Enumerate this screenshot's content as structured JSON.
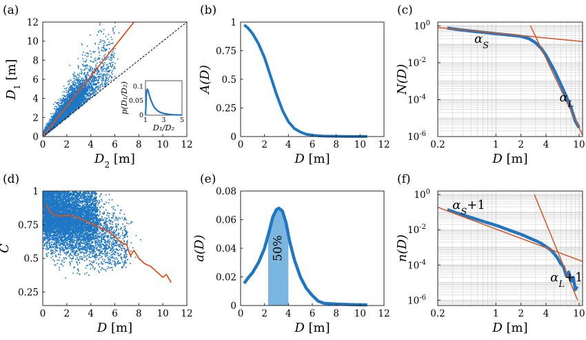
{
  "colors": {
    "blue": "#1f77c4",
    "orange": "#d9531e",
    "shade": "#7ab6e0",
    "grid": "#cfcfcf"
  },
  "chart_data": [
    {
      "id": "a",
      "type": "scatter",
      "panel_label": "(a)",
      "xlabel_sym": "D",
      "xlabel_sub": "2",
      "xlabel_unit": "[m]",
      "ylabel_sym": "D",
      "ylabel_sub": "1",
      "ylabel_unit": "[m]",
      "xlim": [
        0,
        12
      ],
      "ylim": [
        0,
        12
      ],
      "xticks": [
        0,
        2,
        4,
        6,
        8,
        10,
        12
      ],
      "yticks": [
        0,
        2,
        4,
        6,
        8,
        10,
        12
      ],
      "fit_line": {
        "x": [
          0,
          7.6
        ],
        "y": [
          0,
          12
        ]
      },
      "identity_line": {
        "x": [
          0,
          12
        ],
        "y": [
          0,
          12
        ],
        "style": "dashed"
      },
      "inset": {
        "type": "line",
        "xlabel": "D₁/D₂",
        "ylabel": "p(D₁/D₂)",
        "xlim": [
          1,
          5
        ],
        "ylim": [
          0,
          0.12
        ],
        "xticks": [
          1,
          3,
          5
        ],
        "yticks": [
          0,
          0.05,
          0.1
        ],
        "x": [
          1.0,
          1.05,
          1.1,
          1.15,
          1.2,
          1.3,
          1.4,
          1.6,
          1.8,
          2.0,
          2.3,
          2.6,
          3.0,
          3.5,
          4.0,
          4.5,
          5.0
        ],
        "y": [
          0.0,
          0.03,
          0.07,
          0.088,
          0.09,
          0.085,
          0.072,
          0.052,
          0.037,
          0.026,
          0.016,
          0.01,
          0.006,
          0.003,
          0.0015,
          0.0008,
          0.0004
        ]
      }
    },
    {
      "id": "b",
      "type": "line",
      "panel_label": "(b)",
      "xlabel_sym": "D",
      "xlabel_unit": "[m]",
      "ylabel": "A(D)",
      "xlim": [
        0,
        12
      ],
      "ylim": [
        0,
        1
      ],
      "xticks": [
        0,
        2,
        4,
        6,
        8,
        10,
        12
      ],
      "yticks": [
        0,
        0.25,
        0.5,
        0.75,
        1
      ],
      "ytick_labels": [
        "0",
        "0.25",
        "0.5",
        "0.75",
        "1"
      ],
      "x": [
        0.3,
        0.6,
        1.0,
        1.5,
        2.0,
        2.5,
        3.0,
        3.5,
        4.0,
        4.5,
        5.0,
        5.5,
        6.0,
        6.5,
        7.0,
        8.0,
        9.0,
        10.0,
        10.6
      ],
      "y": [
        0.975,
        0.95,
        0.9,
        0.81,
        0.69,
        0.53,
        0.37,
        0.23,
        0.13,
        0.07,
        0.04,
        0.02,
        0.012,
        0.007,
        0.004,
        0.002,
        0.001,
        0.001,
        0.001
      ]
    },
    {
      "id": "c",
      "type": "line",
      "panel_label": "(c)",
      "scale": "loglog",
      "xlabel_sym": "D",
      "xlabel_unit": "[m]",
      "ylabel": "N(D)",
      "xlim": [
        0.2,
        11
      ],
      "ylim_exp": [
        -6,
        0.2
      ],
      "xticks": [
        0.2,
        1,
        2,
        4,
        10
      ],
      "ytick_exps": [
        -6,
        -4,
        -2,
        0
      ],
      "grid": true,
      "x": [
        0.26,
        0.35,
        0.5,
        0.7,
        1.0,
        1.5,
        2.0,
        2.5,
        3.0,
        3.5,
        4.0,
        5.0,
        6.0,
        7.0,
        8.0,
        9.0,
        10.0
      ],
      "y": [
        0.75,
        0.62,
        0.52,
        0.44,
        0.37,
        0.31,
        0.27,
        0.2,
        0.12,
        0.06,
        0.025,
        0.004,
        0.0007,
        0.00015,
        3.5e-05,
        7e-06,
        3e-06
      ],
      "fit_small": {
        "x": [
          0.2,
          11
        ],
        "y": [
          0.81,
          0.14
        ]
      },
      "fit_large": {
        "x": [
          2.6,
          11
        ],
        "y": [
          1.0,
          1.2e-06
        ]
      },
      "annotations": [
        {
          "sym": "α",
          "sub": "S",
          "at": [
            0.55,
            0.12
          ]
        },
        {
          "sym": "α",
          "sub": "L",
          "at": [
            5.8,
            8e-05
          ]
        }
      ]
    },
    {
      "id": "d",
      "type": "scatter",
      "panel_label": "(d)",
      "xlabel_sym": "D",
      "xlabel_unit": "[m]",
      "ylabel": "C",
      "xlim": [
        0,
        12
      ],
      "ylim": [
        0.15,
        1
      ],
      "xticks": [
        0,
        2,
        4,
        6,
        8,
        10,
        12
      ],
      "yticks": [
        0.25,
        0.5,
        0.75,
        1
      ],
      "ytick_labels": [
        "0.25",
        "0.5",
        "0.75",
        "1"
      ],
      "mean_line": {
        "x": [
          0.3,
          0.6,
          1.0,
          1.5,
          2.0,
          2.5,
          3.0,
          3.5,
          4.0,
          4.5,
          5.0,
          5.5,
          6.0,
          6.5,
          7.0,
          7.3,
          7.6,
          8.0,
          8.5,
          9.0,
          9.5,
          10.0,
          10.3,
          10.7
        ],
        "y": [
          0.9,
          0.85,
          0.82,
          0.815,
          0.82,
          0.815,
          0.8,
          0.78,
          0.76,
          0.74,
          0.72,
          0.7,
          0.66,
          0.62,
          0.6,
          0.52,
          0.56,
          0.5,
          0.46,
          0.44,
          0.4,
          0.36,
          0.38,
          0.32
        ]
      }
    },
    {
      "id": "e",
      "type": "area",
      "panel_label": "(e)",
      "xlabel_sym": "D",
      "xlabel_unit": "[m]",
      "ylabel": "a(D)",
      "xlim": [
        0,
        12
      ],
      "ylim": [
        0,
        0.08
      ],
      "xticks": [
        0,
        2,
        4,
        6,
        8,
        10,
        12
      ],
      "yticks": [
        0,
        0.02,
        0.04,
        0.06,
        0.08
      ],
      "ytick_labels": [
        "0",
        "0.02",
        "0.04",
        "0.06",
        "0.08"
      ],
      "x": [
        0.3,
        0.6,
        1.0,
        1.5,
        2.0,
        2.4,
        2.7,
        3.0,
        3.2,
        3.5,
        3.8,
        4.1,
        4.5,
        5.0,
        5.5,
        6.0,
        6.5,
        7.0,
        8.0,
        9.0,
        10.0,
        10.6
      ],
      "y": [
        0.0155,
        0.019,
        0.023,
        0.03,
        0.04,
        0.052,
        0.062,
        0.067,
        0.068,
        0.066,
        0.058,
        0.045,
        0.032,
        0.02,
        0.012,
        0.007,
        0.003,
        0.0015,
        0.001,
        0.0007,
        0.0005,
        0.0005
      ],
      "shaded_range": [
        2.3,
        4.0
      ],
      "shaded_label": "50%"
    },
    {
      "id": "f",
      "type": "line",
      "panel_label": "(f)",
      "scale": "loglog",
      "xlabel_sym": "D",
      "xlabel_unit": "[m]",
      "ylabel": "n(D)",
      "xlim": [
        0.2,
        11
      ],
      "ylim_exp": [
        -6.3,
        0.2
      ],
      "xticks": [
        0.2,
        1,
        2,
        4,
        10
      ],
      "ytick_exps": [
        -6,
        -4,
        -2,
        0
      ],
      "grid": true,
      "x": [
        0.26,
        0.35,
        0.5,
        0.7,
        1.0,
        1.5,
        2.0,
        2.5,
        3.0,
        3.5,
        4.0,
        4.5,
        5.0,
        5.5,
        6.0,
        6.5,
        7.0,
        7.5,
        8.0,
        8.5,
        9.0,
        9.5
      ],
      "y": [
        0.14,
        0.085,
        0.05,
        0.03,
        0.018,
        0.009,
        0.0055,
        0.0035,
        0.0024,
        0.0017,
        0.0011,
        0.00075,
        0.00045,
        0.00025,
        0.00012,
        8e-05,
        2.5e-05,
        4e-05,
        1.2e-05,
        2e-05,
        4e-06,
        6e-06
      ],
      "fit_small": {
        "x": [
          0.2,
          11
        ],
        "y": [
          0.19,
          0.00016
        ]
      },
      "fit_large": {
        "x": [
          2.9,
          9.6
        ],
        "y": [
          1.0,
          1e-06
        ]
      },
      "annotations": [
        {
          "sym": "α",
          "sub": "S",
          "suffix": "+1",
          "at": [
            0.3,
            0.15
          ]
        },
        {
          "sym": "α",
          "sub": "L",
          "suffix": "+1",
          "at": [
            4.5,
            1.2e-05
          ]
        }
      ]
    }
  ]
}
